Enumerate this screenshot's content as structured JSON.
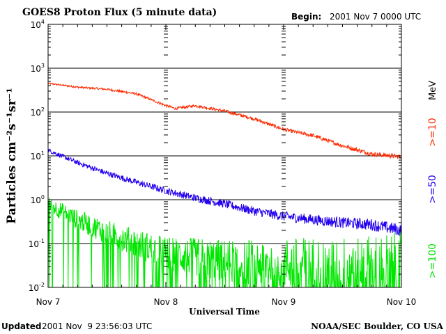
{
  "header": {
    "title": "GOES8 Proton Flux (5 minute data)",
    "begin_label": "Begin:",
    "begin_value": "2001 Nov 7 0000 UTC"
  },
  "footer": {
    "updated_label": "Updated",
    "updated_value": "2001 Nov  9 23:56:03 UTC",
    "credit": "NOAA/SEC Boulder, CO USA"
  },
  "chart_data": {
    "type": "line",
    "title": "GOES8 Proton Flux (5 minute data)",
    "xlabel": "Universal Time",
    "ylabel": "Particles cm⁻²s⁻¹sr⁻¹",
    "y_scale": "log",
    "ylim": [
      0.01,
      10000
    ],
    "xlim": [
      "2001-11-07T00:00",
      "2001-11-10T00:00"
    ],
    "x_ticks": [
      "Nov 7",
      "Nov 8",
      "Nov 9",
      "Nov 10"
    ],
    "y_ticks": [
      {
        "base": "10",
        "exp": "-2"
      },
      {
        "base": "10",
        "exp": "-1"
      },
      {
        "base": "10",
        "exp": "0"
      },
      {
        "base": "10",
        "exp": "1"
      },
      {
        "base": "10",
        "exp": "2"
      },
      {
        "base": "10",
        "exp": "3"
      },
      {
        "base": "10",
        "exp": "4"
      }
    ],
    "grid": "horizontal",
    "legend_placement": "right",
    "legend_unit": "MeV",
    "series": [
      {
        "name": ">=10",
        "color": "#ff2a00",
        "x_hours": [
          0,
          6,
          12,
          18,
          24,
          26,
          30,
          36,
          42,
          48,
          54,
          60,
          66,
          72
        ],
        "values": [
          450,
          370,
          330,
          260,
          140,
          120,
          140,
          105,
          70,
          40,
          29,
          17,
          11,
          9.5
        ]
      },
      {
        "name": ">=50",
        "color": "#2200ee",
        "x_hours": [
          0,
          6,
          12,
          18,
          24,
          30,
          36,
          42,
          48,
          54,
          60,
          66,
          72
        ],
        "values": [
          13.5,
          7,
          4,
          2.5,
          1.6,
          1.1,
          0.8,
          0.55,
          0.42,
          0.35,
          0.3,
          0.27,
          0.2
        ]
      },
      {
        "name": ">=100",
        "color": "#00e600",
        "x_hours": [
          0,
          6,
          12,
          18,
          24,
          36,
          48,
          60,
          72
        ],
        "values": [
          0.8,
          0.35,
          0.18,
          0.1,
          0.06,
          0.04,
          0.035,
          0.03,
          0.03
        ]
      }
    ]
  }
}
